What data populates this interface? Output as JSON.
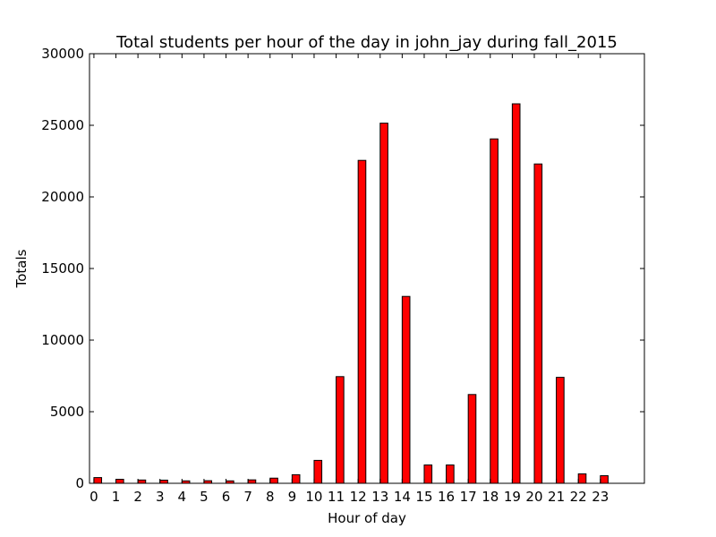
{
  "chart_data": {
    "type": "bar",
    "title": "Total students per hour of the day in john_jay during fall_2015",
    "xlabel": "Hour of day",
    "ylabel": "Totals",
    "categories": [
      "0",
      "1",
      "2",
      "3",
      "4",
      "5",
      "6",
      "7",
      "8",
      "9",
      "10",
      "11",
      "12",
      "13",
      "14",
      "15",
      "16",
      "17",
      "18",
      "19",
      "20",
      "21",
      "22",
      "23"
    ],
    "values": [
      400,
      280,
      230,
      220,
      170,
      180,
      170,
      240,
      360,
      600,
      1600,
      7450,
      22550,
      25150,
      13050,
      1280,
      1280,
      6200,
      24050,
      26500,
      22300,
      7400,
      660,
      530
    ],
    "ylim": [
      0,
      30000
    ],
    "yticks": [
      0,
      5000,
      10000,
      15000,
      20000,
      25000,
      30000
    ],
    "bar_color": "#ff0000",
    "grid": false,
    "legend": "none"
  }
}
